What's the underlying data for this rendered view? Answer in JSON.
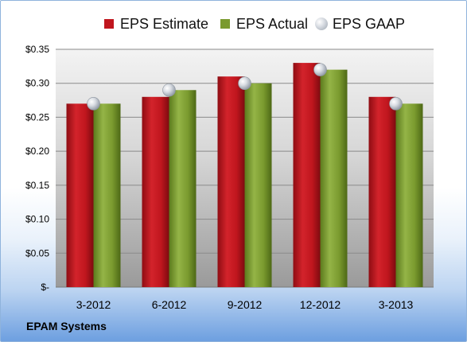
{
  "company": "EPAM Systems",
  "legend": {
    "estimate": "EPS Estimate",
    "actual": "EPS Actual",
    "gaap": "EPS GAAP"
  },
  "colors": {
    "estimate": "#c0161e",
    "actual": "#7a9a2e",
    "gaap": "#c8cdd4",
    "plot_background_top": "#f2f2f2",
    "plot_background_bottom": "#9c9c9c"
  },
  "chart_data": {
    "type": "bar",
    "categories": [
      "3-2012",
      "6-2012",
      "9-2012",
      "12-2012",
      "3-2013"
    ],
    "series": [
      {
        "name": "EPS Estimate",
        "values": [
          0.27,
          0.28,
          0.31,
          0.33,
          0.28
        ]
      },
      {
        "name": "EPS Actual",
        "values": [
          0.27,
          0.29,
          0.3,
          0.32,
          0.27
        ]
      },
      {
        "name": "EPS GAAP",
        "values": [
          0.27,
          0.29,
          0.3,
          0.32,
          0.27
        ],
        "marker": "sphere"
      }
    ],
    "ylim": [
      0,
      0.35
    ],
    "yticks": [
      0,
      0.05,
      0.1,
      0.15,
      0.2,
      0.25,
      0.3,
      0.35
    ],
    "ytick_labels": [
      "$-",
      "$0.05",
      "$0.10",
      "$0.15",
      "$0.20",
      "$0.25",
      "$0.30",
      "$0.35"
    ],
    "grid": true,
    "legend_position": "top"
  }
}
